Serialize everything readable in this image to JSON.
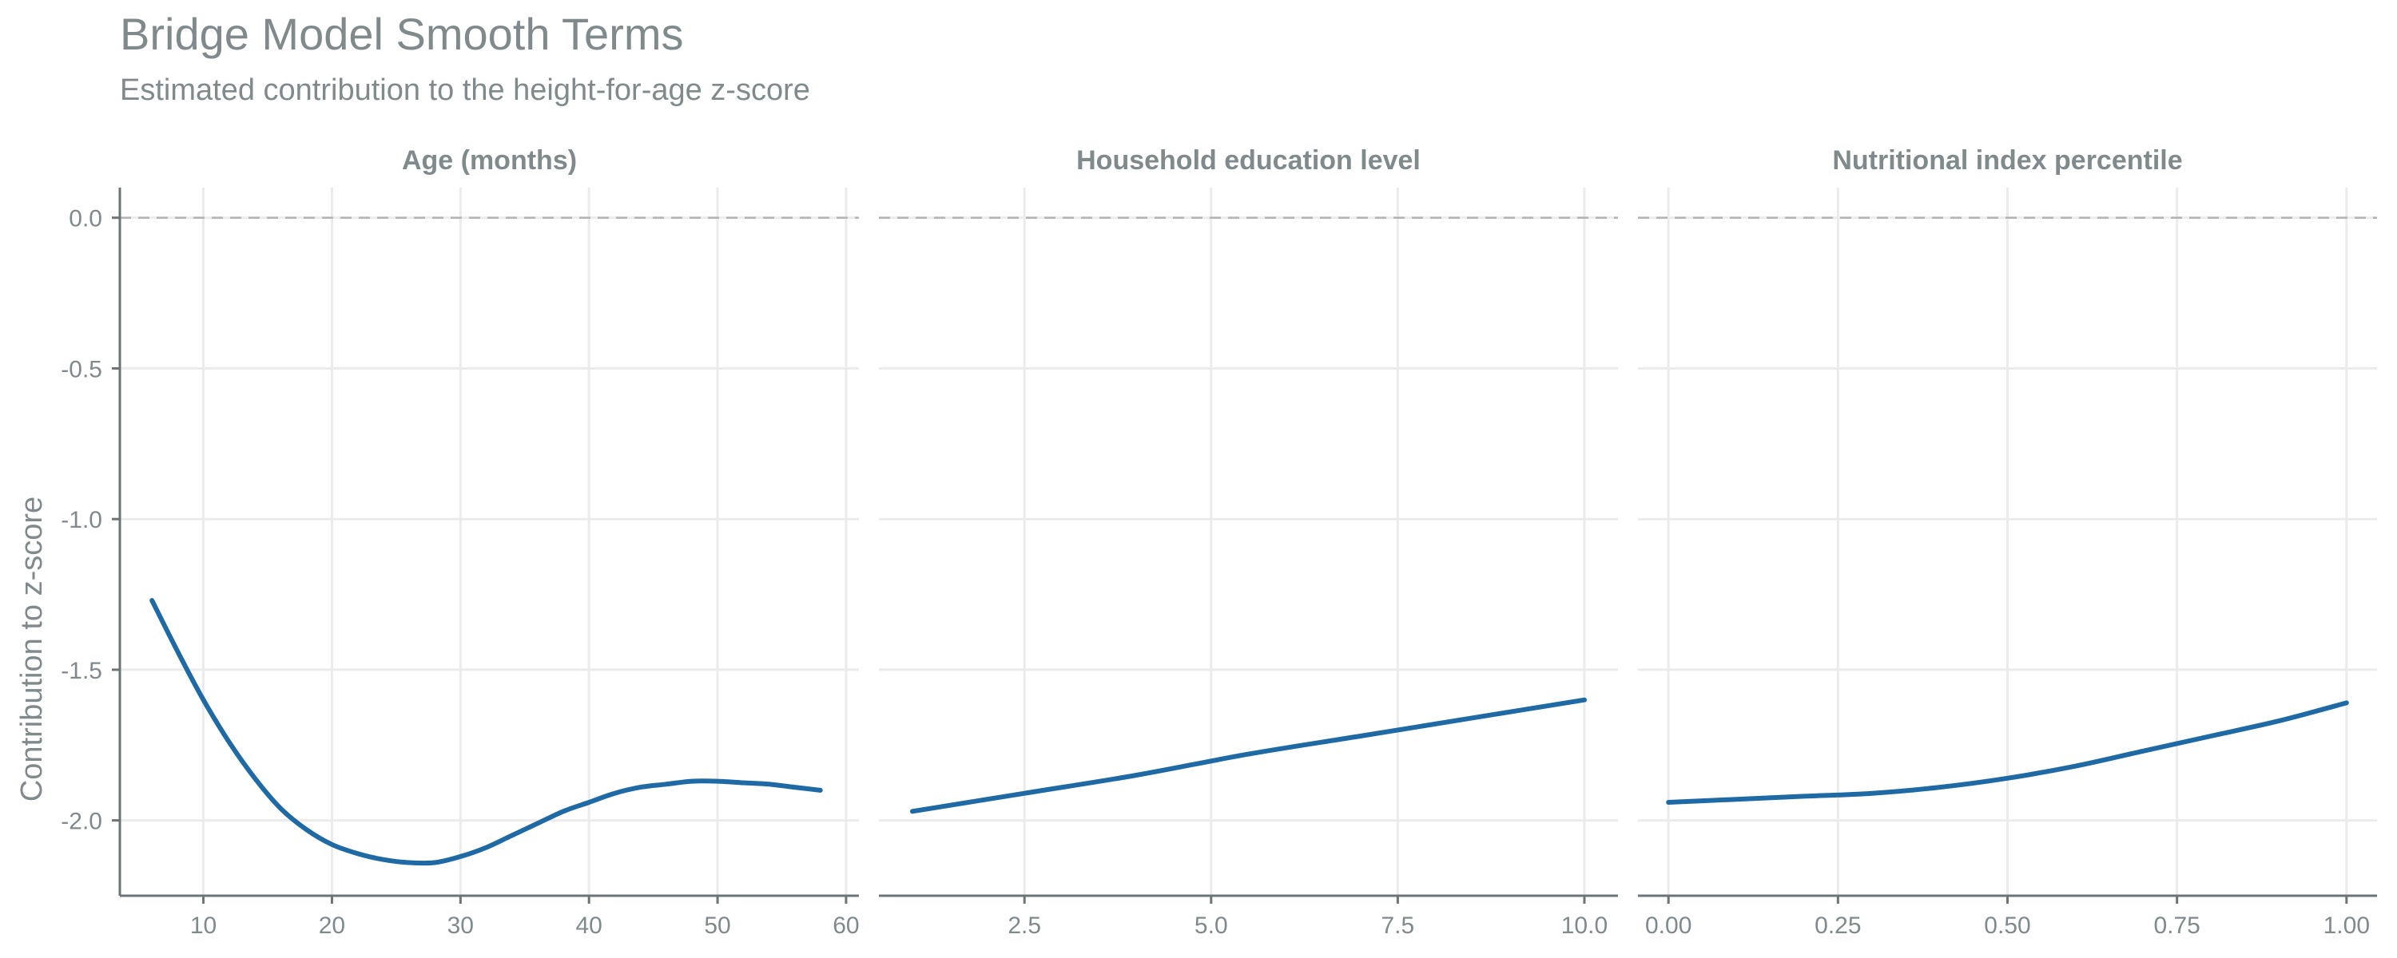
{
  "chart_data": {
    "type": "line",
    "layout": "facets-1x3",
    "title": "Bridge Model Smooth Terms",
    "subtitle": "Estimated contribution to the height-for-age z-score",
    "ylabel": "Contribution to z-score",
    "ylim": [
      -2.25,
      0.1
    ],
    "y_ticks": [
      0.0,
      -0.5,
      -1.0,
      -1.5,
      -2.0
    ],
    "y_tick_labels": [
      "0.0",
      "-0.5",
      "-1.0",
      "-1.5",
      "-2.0"
    ],
    "reference_line": {
      "y": 0,
      "style": "dashed"
    },
    "grid": true,
    "colors": {
      "line": "#1f6aa5",
      "text": "#808a8d",
      "grid": "#ebebeb",
      "axis": "#6b7476",
      "reference": "#b3b3b3"
    },
    "facets": [
      {
        "title": "Age (months)",
        "xlim": [
          3.5,
          61
        ],
        "x_ticks": [
          10,
          20,
          30,
          40,
          50,
          60
        ],
        "x_tick_labels": [
          "10",
          "20",
          "30",
          "40",
          "50",
          "60"
        ],
        "x": [
          6,
          8,
          10,
          12,
          14,
          16,
          18,
          20,
          22,
          24,
          26,
          28,
          30,
          32,
          34,
          36,
          38,
          40,
          42,
          44,
          46,
          48,
          50,
          52,
          54,
          56,
          58
        ],
        "y": [
          -1.27,
          -1.44,
          -1.6,
          -1.74,
          -1.86,
          -1.96,
          -2.03,
          -2.08,
          -2.11,
          -2.13,
          -2.14,
          -2.14,
          -2.12,
          -2.09,
          -2.05,
          -2.01,
          -1.97,
          -1.94,
          -1.91,
          -1.89,
          -1.88,
          -1.87,
          -1.87,
          -1.875,
          -1.88,
          -1.89,
          -1.9
        ]
      },
      {
        "title": "Household education level",
        "xlim": [
          0.55,
          10.45
        ],
        "x_ticks": [
          2.5,
          5.0,
          7.5,
          10.0
        ],
        "x_tick_labels": [
          "2.5",
          "5.0",
          "7.5",
          "10.0"
        ],
        "x": [
          1.0,
          2.5,
          4.0,
          5.5,
          7.0,
          8.5,
          10.0
        ],
        "y": [
          -1.97,
          -1.91,
          -1.85,
          -1.78,
          -1.72,
          -1.66,
          -1.6
        ]
      },
      {
        "title": "Nutritional index percentile",
        "xlim": [
          -0.045,
          1.045
        ],
        "x_ticks": [
          0.0,
          0.25,
          0.5,
          0.75,
          1.0
        ],
        "x_tick_labels": [
          "0.00",
          "0.25",
          "0.50",
          "0.75",
          "1.00"
        ],
        "x": [
          0.0,
          0.1,
          0.2,
          0.3,
          0.4,
          0.5,
          0.6,
          0.7,
          0.8,
          0.9,
          1.0
        ],
        "y": [
          -1.94,
          -1.93,
          -1.92,
          -1.91,
          -1.89,
          -1.86,
          -1.82,
          -1.77,
          -1.72,
          -1.67,
          -1.61
        ]
      }
    ]
  }
}
